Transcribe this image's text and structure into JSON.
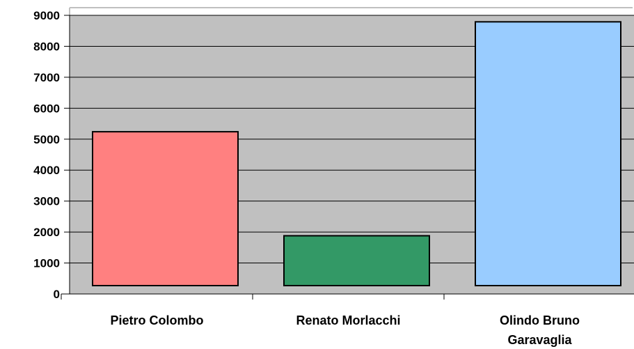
{
  "chart_data": {
    "type": "bar",
    "title": "",
    "xlabel": "",
    "ylabel": "",
    "categories": [
      "Pietro Colombo",
      "Renato Morlacchi",
      "Olindo Bruno Garavaglia"
    ],
    "values": [
      4970,
      1610,
      8520
    ],
    "ylim": [
      0,
      9000
    ],
    "yticks": [
      0,
      1000,
      2000,
      3000,
      4000,
      5000,
      6000,
      7000,
      8000,
      9000
    ],
    "grid": true,
    "legend": "none",
    "colors": {
      "plot_background": "#c0c0c0",
      "gridline": "#000000",
      "bars": [
        "#ff8080",
        "#339966",
        "#99ccff"
      ],
      "bar_outline": "#000000"
    }
  }
}
